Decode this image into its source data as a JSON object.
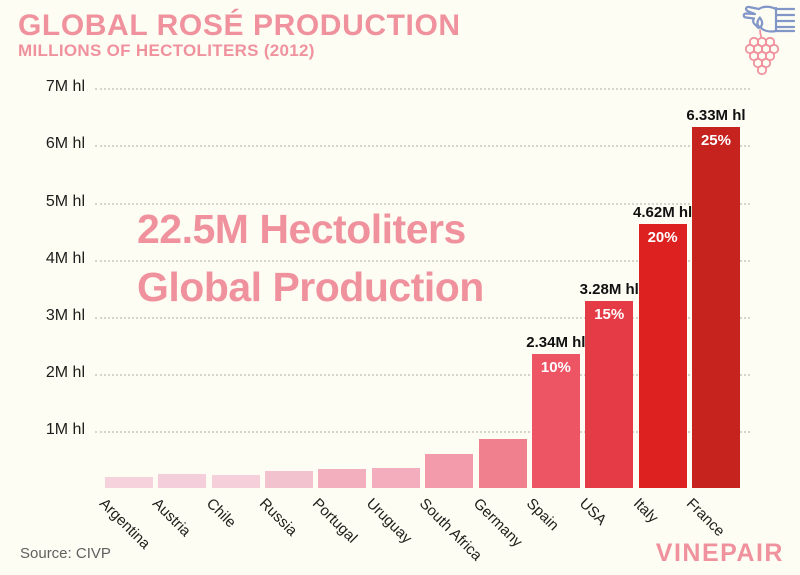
{
  "colors": {
    "background": "#FDFDF3",
    "accent_pink": "#F0929E",
    "grid": "#D5D5CB",
    "axis_text": "#1D1D1B",
    "value_label_text": "#111111",
    "pct_label_text": "#FFFFFF",
    "source_text": "#606060",
    "hand_icon_blue": "#8296C8"
  },
  "icon": {
    "name": "grape-picking-icon"
  },
  "footer": {
    "source": "Source: CIVP",
    "brand": "VINEPAIR"
  },
  "chart_data": {
    "type": "bar",
    "title": "GLOBAL ROSÉ PRODUCTION",
    "subtitle": "MILLIONS OF HECTOLITERS (2012)",
    "xlabel": "",
    "ylabel": "",
    "unit": "M hl",
    "ylim": [
      0,
      7
    ],
    "grid": "horizontal dotted",
    "legend": "none",
    "yticks": [
      {
        "value": 7,
        "label": "7M hl"
      },
      {
        "value": 6,
        "label": "6M hl"
      },
      {
        "value": 5,
        "label": "5M hl"
      },
      {
        "value": 4,
        "label": "4M hl"
      },
      {
        "value": 3,
        "label": "3M hl"
      },
      {
        "value": 2,
        "label": "2M hl"
      },
      {
        "value": 1,
        "label": "1M hl"
      }
    ],
    "categories": [
      "Argentina",
      "Austria",
      "Chile",
      "Russia",
      "Portugal",
      "Uruguay",
      "South Africa",
      "Germany",
      "Spain",
      "USA",
      "Italy",
      "France"
    ],
    "values": [
      0.2,
      0.25,
      0.23,
      0.3,
      0.33,
      0.35,
      0.6,
      0.86,
      2.34,
      3.28,
      4.62,
      6.33
    ],
    "bar_colors": [
      "#F5D2DC",
      "#F4CEDA",
      "#F5D0DB",
      "#F3C2CF",
      "#F4AFBE",
      "#F3ADBC",
      "#F39AAB",
      "#F1808F",
      "#ED5565",
      "#E43B46",
      "#DD2020",
      "#C6231F"
    ],
    "value_labels": [
      "",
      "",
      "",
      "",
      "",
      "",
      "",
      "",
      "2.34M hl",
      "3.28M hl",
      "4.62M hl",
      "6.33M hl"
    ],
    "pct_labels": [
      "",
      "",
      "",
      "",
      "",
      "",
      "",
      "",
      "10%",
      "15%",
      "20%",
      "25%"
    ],
    "annotation": {
      "line1": "22.5M Hectoliters",
      "line2": "Global Production"
    },
    "source": "Source: CIVP",
    "brand": "VINEPAIR"
  }
}
